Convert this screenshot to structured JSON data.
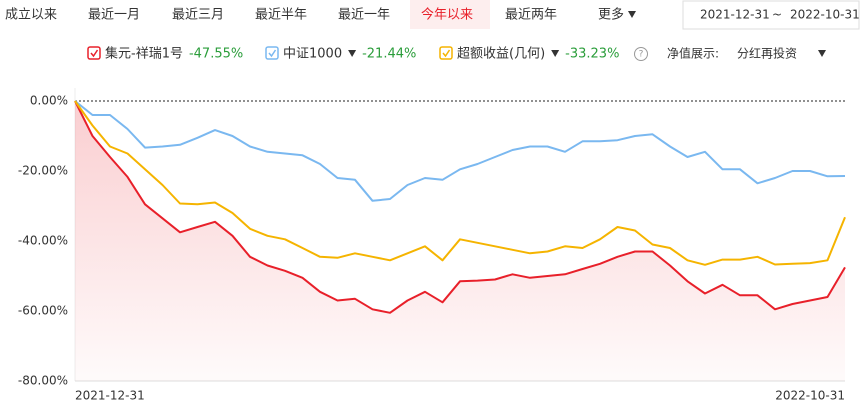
{
  "tabs": [
    "成立以来",
    "最近一月",
    "最近三月",
    "最近半年",
    "最近一年",
    "今年以来",
    "最近两年",
    "更多"
  ],
  "active_tab": 5,
  "date_range": {
    "start": "2021-12-31",
    "separator": "~",
    "end": "2022-10-31"
  },
  "display": {
    "label": "净值展示:",
    "value": "分红再投资"
  },
  "chart_data": {
    "type": "line",
    "categories": [
      "2021-12-31",
      null,
      null,
      null,
      null,
      null,
      null,
      null,
      null,
      null,
      null,
      null,
      null,
      null,
      null,
      null,
      null,
      null,
      null,
      null,
      null,
      null,
      null,
      null,
      null,
      null,
      null,
      null,
      null,
      null,
      null,
      null,
      null,
      null,
      null,
      null,
      null,
      null,
      null,
      null,
      null,
      null,
      null,
      null,
      "2022-10-31"
    ],
    "series": [
      {
        "name": "集元-祥瑞1号",
        "total_return": "-47.55%",
        "color": "#e8202a",
        "area": true,
        "values": [
          0,
          -10,
          -16,
          -21.7,
          -29.5,
          -33.5,
          -37.5,
          -36,
          -34.5,
          -38.5,
          -44.5,
          -47,
          -48.5,
          -50.5,
          -54.5,
          -57,
          -56.5,
          -59.5,
          -60.5,
          -57,
          -54.5,
          -57.5,
          -51.5,
          -51.3,
          -51,
          -49.5,
          -50.5,
          -50,
          -49.5,
          -48,
          -46.5,
          -44.5,
          -43,
          -43,
          -47,
          -51.5,
          -55,
          -52.5,
          -55.5,
          -55.5,
          -59.5,
          -58,
          -57,
          -56,
          -47.55
        ]
      },
      {
        "name": "中证1000",
        "total_return": "-21.44%",
        "color": "#7ab8f0",
        "dropdown": true,
        "values": [
          0,
          -4,
          -4,
          -8,
          -13.3,
          -13,
          -12.5,
          -10.5,
          -8.3,
          -10,
          -13,
          -14.5,
          -15,
          -15.5,
          -18,
          -22,
          -22.5,
          -28.5,
          -28,
          -24,
          -22,
          -22.5,
          -19.5,
          -18,
          -16,
          -14,
          -13,
          -13,
          -14.5,
          -11.5,
          -11.5,
          -11.2,
          -10,
          -9.5,
          -13,
          -16,
          -14.5,
          -19.5,
          -19.5,
          -23.5,
          -22,
          -20,
          -20,
          -21.5,
          -21.44
        ]
      },
      {
        "name": "超额收益(几何)",
        "total_return": "-33.23%",
        "color": "#f5b400",
        "dropdown": true,
        "values": [
          0,
          -7,
          -13,
          -15,
          -19.5,
          -24,
          -29.3,
          -29.5,
          -29,
          -32,
          -36.5,
          -38.5,
          -39.5,
          -42,
          -44.5,
          -44.8,
          -43.5,
          -44.5,
          -45.5,
          -43.5,
          -41.5,
          -45.5,
          -39.5,
          -40.5,
          -41.5,
          -42.5,
          -43.5,
          -43,
          -41.5,
          -42,
          -39.5,
          -36,
          -37,
          -41,
          -42,
          -45.5,
          -46.8,
          -45.3,
          -45.3,
          -44.5,
          -46.7,
          -46.5,
          -46.3,
          -45.5,
          -33.23
        ]
      }
    ],
    "ylim": [
      -80,
      0
    ],
    "yticks": [
      {
        "value": 0,
        "label": "0.00%"
      },
      {
        "value": -20,
        "label": "-20.00%"
      },
      {
        "value": -40,
        "label": "-40.00%"
      },
      {
        "value": -60,
        "label": "-60.00%"
      },
      {
        "value": -80,
        "label": "-80.00%"
      }
    ],
    "zero_line": true,
    "return_color": "#2a9d3a"
  }
}
